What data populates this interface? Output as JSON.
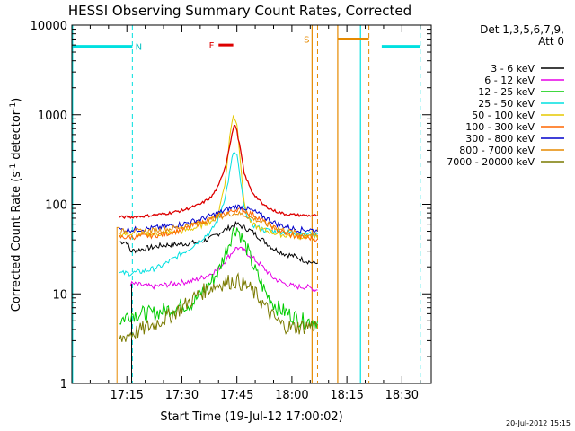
{
  "chart_data": {
    "type": "line",
    "title": "HESSI Observing Summary Count Rates, Corrected",
    "xlabel": "Start Time (19-Jul-12 17:00:02)",
    "ylabel_main": "Corrected Count Rate (s",
    "ylabel_sup1": "-1",
    "ylabel_mid": " detector",
    "ylabel_sup2": "-1",
    "ylabel_end": ")",
    "x_unit": "minutes after 17:00:02",
    "xlim": [
      0,
      98
    ],
    "ylim": [
      1,
      10000
    ],
    "y_scale": "log",
    "grid": false,
    "x_ticks": [
      {
        "v": 15,
        "label": "17:15"
      },
      {
        "v": 30,
        "label": "17:30"
      },
      {
        "v": 45,
        "label": "17:45"
      },
      {
        "v": 60,
        "label": "18:00"
      },
      {
        "v": 75,
        "label": "18:15"
      },
      {
        "v": 90,
        "label": "18:30"
      }
    ],
    "y_ticks": [
      {
        "v": 1,
        "label": "1"
      },
      {
        "v": 10,
        "label": "10"
      },
      {
        "v": 100,
        "label": "100"
      },
      {
        "v": 1000,
        "label": "1000"
      },
      {
        "v": 10000,
        "label": "10000"
      }
    ],
    "legend": {
      "placement": "right",
      "header1": "Det 1,3,5,6,7,9,",
      "header2": "Att 0"
    },
    "series": [
      {
        "name": "3 - 6 keV",
        "color": "#000000",
        "points": [
          [
            13,
            38
          ],
          [
            15,
            38
          ],
          [
            16,
            30
          ],
          [
            20,
            32
          ],
          [
            25,
            35
          ],
          [
            30,
            36
          ],
          [
            35,
            38
          ],
          [
            38,
            42
          ],
          [
            41,
            50
          ],
          [
            43,
            55
          ],
          [
            45,
            60
          ],
          [
            47,
            55
          ],
          [
            49,
            50
          ],
          [
            52,
            40
          ],
          [
            55,
            32
          ],
          [
            58,
            28
          ],
          [
            61,
            26
          ],
          [
            63,
            24
          ],
          [
            66,
            22
          ],
          [
            67,
            22
          ]
        ]
      },
      {
        "name": "6 - 12 keV",
        "color": "#e600e6",
        "points": [
          [
            16,
            13
          ],
          [
            22,
            12
          ],
          [
            28,
            13
          ],
          [
            33,
            14
          ],
          [
            37,
            16
          ],
          [
            40,
            19
          ],
          [
            42,
            24
          ],
          [
            44,
            30
          ],
          [
            45,
            33
          ],
          [
            47,
            30
          ],
          [
            49,
            26
          ],
          [
            52,
            20
          ],
          [
            55,
            15
          ],
          [
            58,
            13
          ],
          [
            61,
            12
          ],
          [
            64,
            12
          ],
          [
            67,
            11
          ]
        ]
      },
      {
        "name": "12 - 25 keV",
        "color": "#00cc00",
        "points": [
          [
            13,
            5
          ],
          [
            16,
            6
          ],
          [
            22,
            6
          ],
          [
            28,
            7
          ],
          [
            33,
            8
          ],
          [
            37,
            12
          ],
          [
            40,
            18
          ],
          [
            42,
            30
          ],
          [
            44,
            50
          ],
          [
            45,
            55
          ],
          [
            46,
            45
          ],
          [
            48,
            30
          ],
          [
            50,
            18
          ],
          [
            53,
            10
          ],
          [
            56,
            7
          ],
          [
            59,
            6
          ],
          [
            63,
            5
          ],
          [
            67,
            5
          ]
        ]
      },
      {
        "name": "25 - 50 keV",
        "color": "#00e0e0",
        "points": [
          [
            13,
            17
          ],
          [
            16,
            17
          ],
          [
            20,
            18
          ],
          [
            24,
            20
          ],
          [
            28,
            25
          ],
          [
            32,
            32
          ],
          [
            35,
            40
          ],
          [
            38,
            50
          ],
          [
            40,
            70
          ],
          [
            42,
            130
          ],
          [
            43,
            220
          ],
          [
            44,
            380
          ],
          [
            45,
            350
          ],
          [
            46,
            180
          ],
          [
            47,
            90
          ],
          [
            49,
            60
          ],
          [
            52,
            52
          ],
          [
            55,
            50
          ],
          [
            58,
            49
          ],
          [
            61,
            48
          ],
          [
            64,
            47
          ],
          [
            67,
            46
          ]
        ]
      },
      {
        "name": "50 - 100 keV",
        "color": "#e6c800",
        "points": [
          [
            13,
            46
          ],
          [
            16,
            46
          ],
          [
            20,
            46
          ],
          [
            25,
            47
          ],
          [
            30,
            50
          ],
          [
            34,
            55
          ],
          [
            38,
            65
          ],
          [
            40,
            80
          ],
          [
            42,
            200
          ],
          [
            43,
            550
          ],
          [
            44,
            1000
          ],
          [
            45,
            800
          ],
          [
            46,
            300
          ],
          [
            47,
            100
          ],
          [
            49,
            60
          ],
          [
            52,
            52
          ],
          [
            55,
            48
          ],
          [
            58,
            45
          ],
          [
            61,
            44
          ],
          [
            64,
            43
          ],
          [
            67,
            42
          ]
        ]
      },
      {
        "name": "100 - 300 keV",
        "color": "#ff6600",
        "points": [
          [
            13,
            43
          ],
          [
            16,
            43
          ],
          [
            20,
            44
          ],
          [
            25,
            46
          ],
          [
            30,
            52
          ],
          [
            35,
            62
          ],
          [
            40,
            75
          ],
          [
            43,
            82
          ],
          [
            45,
            88
          ],
          [
            47,
            85
          ],
          [
            50,
            75
          ],
          [
            53,
            62
          ],
          [
            56,
            52
          ],
          [
            59,
            46
          ],
          [
            62,
            43
          ],
          [
            65,
            42
          ],
          [
            67,
            41
          ]
        ]
      },
      {
        "name": "300 - 800 keV",
        "color": "#0000cc",
        "points": [
          [
            13,
            52
          ],
          [
            16,
            52
          ],
          [
            20,
            53
          ],
          [
            25,
            56
          ],
          [
            30,
            60
          ],
          [
            35,
            68
          ],
          [
            40,
            80
          ],
          [
            43,
            90
          ],
          [
            45,
            95
          ],
          [
            47,
            92
          ],
          [
            50,
            82
          ],
          [
            53,
            70
          ],
          [
            56,
            60
          ],
          [
            59,
            55
          ],
          [
            62,
            52
          ],
          [
            65,
            52
          ],
          [
            67,
            50
          ]
        ]
      },
      {
        "name": "800 - 7000 keV",
        "color": "#e68a00",
        "points": [
          [
            13,
            50
          ],
          [
            16,
            50
          ],
          [
            20,
            50
          ],
          [
            25,
            52
          ],
          [
            30,
            56
          ],
          [
            35,
            62
          ],
          [
            40,
            72
          ],
          [
            43,
            78
          ],
          [
            45,
            80
          ],
          [
            47,
            76
          ],
          [
            50,
            68
          ],
          [
            53,
            60
          ],
          [
            56,
            54
          ],
          [
            59,
            50
          ],
          [
            62,
            47
          ],
          [
            65,
            46
          ],
          [
            67,
            45
          ]
        ]
      },
      {
        "name": "7000 - 20000 keV",
        "color": "#7a7a00",
        "points": [
          [
            13,
            3
          ],
          [
            15,
            3.5
          ],
          [
            18,
            3.8
          ],
          [
            22,
            4.5
          ],
          [
            26,
            5.5
          ],
          [
            30,
            7
          ],
          [
            34,
            9.5
          ],
          [
            38,
            12
          ],
          [
            42,
            13.5
          ],
          [
            45,
            14
          ],
          [
            48,
            12
          ],
          [
            51,
            9
          ],
          [
            54,
            6
          ],
          [
            57,
            4.6
          ],
          [
            60,
            4.2
          ],
          [
            63,
            4.3
          ],
          [
            67,
            4.5
          ]
        ]
      }
    ],
    "red_curve": {
      "color": "#dd0000",
      "points": [
        [
          13,
          72
        ],
        [
          16,
          72
        ],
        [
          20,
          74
        ],
        [
          25,
          78
        ],
        [
          30,
          85
        ],
        [
          35,
          100
        ],
        [
          38,
          120
        ],
        [
          40,
          160
        ],
        [
          42,
          280
        ],
        [
          43,
          450
        ],
        [
          44,
          700
        ],
        [
          44.5,
          780
        ],
        [
          45,
          650
        ],
        [
          46,
          400
        ],
        [
          47,
          220
        ],
        [
          49,
          140
        ],
        [
          52,
          100
        ],
        [
          55,
          85
        ],
        [
          58,
          78
        ],
        [
          61,
          76
        ],
        [
          64,
          75
        ],
        [
          67,
          75
        ]
      ]
    },
    "orange_steps": {
      "color": "#e68a00",
      "points": [
        [
          12.3,
          1
        ],
        [
          12.3,
          55
        ],
        [
          13,
          55
        ]
      ]
    },
    "annotations": {
      "night_label": "N",
      "flare_label": "F",
      "saa_label": "S",
      "flare_bar": {
        "x0": 40,
        "x1": 44,
        "y": 6000
      },
      "night_bars": [
        {
          "x0": 0,
          "x1": 16.5,
          "y": 5800
        },
        {
          "x0": 84.5,
          "x1": 95,
          "y": 5800
        }
      ],
      "saa_bars": [
        {
          "x0": 72.5,
          "x1": 81,
          "y": 7000
        }
      ],
      "night_lines_solid": [
        0.2,
        78.7
      ],
      "night_lines_dashed": [
        16.5,
        95
      ],
      "saa_lines_solid": [
        65.5,
        72.5
      ],
      "saa_lines_dashed": [
        67,
        81
      ],
      "cutoff_dark": 16.3
    },
    "footer": "20-Jul-2012 15:15"
  }
}
